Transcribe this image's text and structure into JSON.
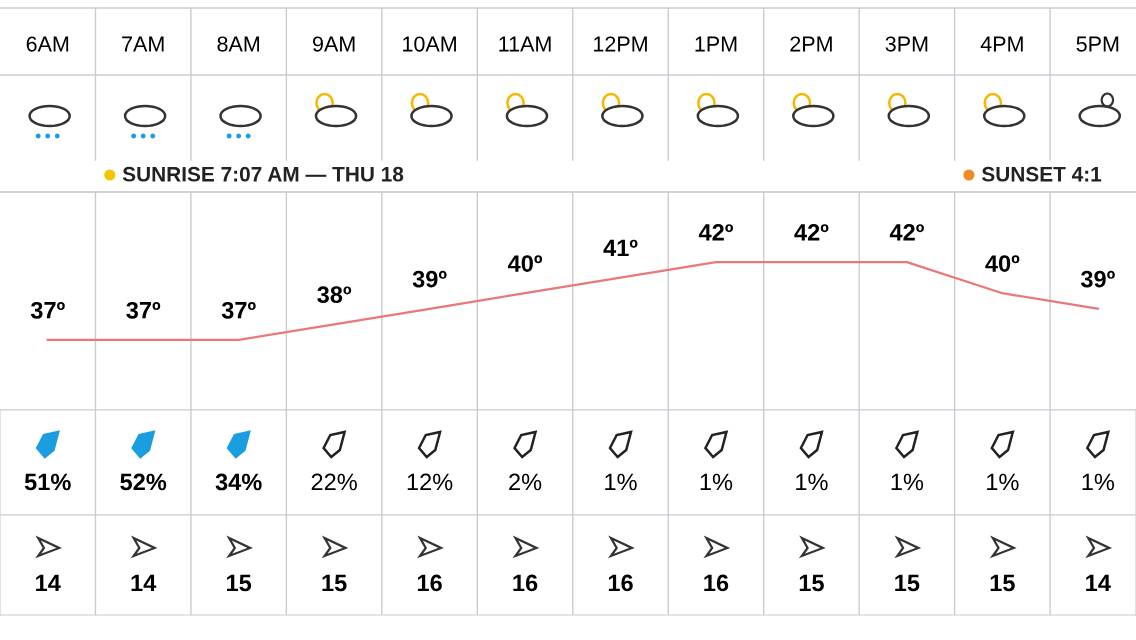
{
  "chart_data": [
    {
      "type": "line",
      "categories": [
        "6AM",
        "7AM",
        "8AM",
        "9AM",
        "10AM",
        "11AM",
        "12PM",
        "1PM",
        "2PM",
        "3PM",
        "4PM",
        "5PM"
      ],
      "values": [
        37,
        37,
        37,
        38,
        39,
        40,
        41,
        42,
        42,
        42,
        40,
        39
      ],
      "value_labels": [
        "37º",
        "37º",
        "37º",
        "38º",
        "39º",
        "40º",
        "41º",
        "42º",
        "42º",
        "42º",
        "40º",
        "39º"
      ],
      "color": "#e8787a",
      "tick_labels": "x",
      "marker": "none",
      "annotations": [
        "SUNRISE 7:07 AM — THU 18",
        "SUNSET 4:1"
      ]
    },
    {
      "type": "other",
      "categories": [
        null,
        null,
        null,
        null,
        null,
        null,
        null,
        null,
        null,
        null,
        null,
        null
      ],
      "values": [
        51,
        52,
        34,
        22,
        12,
        2,
        1,
        1,
        1,
        1,
        1,
        1
      ],
      "value_labels": [
        "51%",
        "52%",
        "34%",
        "22%",
        "12%",
        "2%",
        "1%",
        "1%",
        "1%",
        "1%",
        "1%",
        "1%"
      ],
      "colors": [
        "#1a9ee0",
        "#1a9ee0",
        "#1a9ee0",
        "#222222",
        "#222222",
        "#222222",
        "#222222",
        "#222222",
        "#222222",
        "#222222",
        "#222222",
        "#222222"
      ]
    },
    {
      "type": "other",
      "categories": [
        null,
        null,
        null,
        null,
        null,
        null,
        null,
        null,
        null,
        null,
        null,
        null
      ],
      "values": [
        14,
        14,
        15,
        15,
        16,
        16,
        16,
        16,
        15,
        15,
        15,
        14
      ],
      "data_labels": true
    }
  ]
}
